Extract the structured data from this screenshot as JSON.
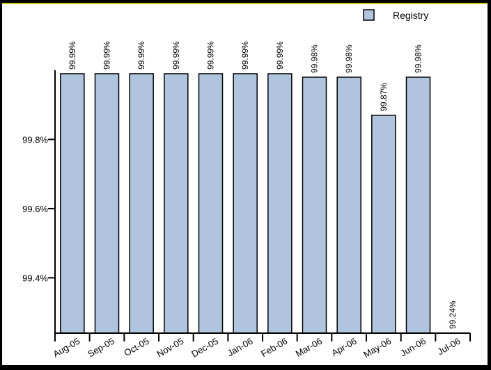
{
  "chart_data": {
    "type": "bar",
    "categories": [
      "Aug-05",
      "Sep-05",
      "Oct-05",
      "Nov-05",
      "Dec-05",
      "Jan-06",
      "Feb-06",
      "Mar-06",
      "Apr-06",
      "May-06",
      "Jun-06",
      "Jul-06"
    ],
    "series": [
      {
        "name": "Registry",
        "values": [
          99.99,
          99.99,
          99.99,
          99.99,
          99.99,
          99.99,
          99.99,
          99.98,
          99.98,
          99.87,
          99.98,
          99.24
        ],
        "labels": [
          "99.99%",
          "99.99%",
          "99.99%",
          "99.99%",
          "99.99%",
          "99.99%",
          "99.99%",
          "99.98%",
          "99.98%",
          "99.87%",
          "99.98%",
          "99.24%"
        ]
      }
    ],
    "yticks": [
      {
        "value": 99.4,
        "label": "99.4%"
      },
      {
        "value": 99.6,
        "label": "99.6%"
      },
      {
        "value": 99.8,
        "label": "99.8%"
      }
    ],
    "ylim": [
      99.24,
      100.0
    ],
    "title": "",
    "xlabel": "",
    "ylabel": "",
    "legend": "top-right",
    "grid": false,
    "colors": {
      "bar_fill": "#b0c4de",
      "bar_stroke": "#000000",
      "background": "#ffffff",
      "frame": "#000000"
    }
  }
}
